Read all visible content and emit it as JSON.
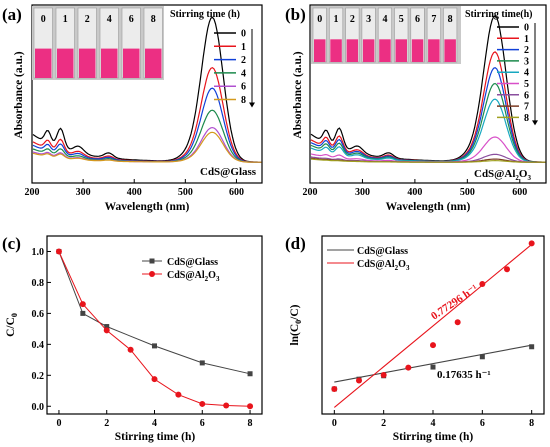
{
  "chart_data": [
    {
      "panel": "(a)",
      "type": "line",
      "xlabel": "Wavelength (nm)",
      "ylabel": "Absorbance (a.u.)",
      "xlim": [
        200,
        650
      ],
      "xticks": [
        200,
        300,
        400,
        500,
        600
      ],
      "legend_title": "Stirring time (h)",
      "legend_position": "top-right",
      "annotation": "CdS@Glass",
      "inset_labels": [
        "0",
        "1",
        "2",
        "4",
        "6",
        "8"
      ],
      "series": [
        {
          "name": "0",
          "color": "#000000",
          "peak": 0.92
        },
        {
          "name": "1",
          "color": "#e8141c",
          "peak": 0.6
        },
        {
          "name": "2",
          "color": "#1040d8",
          "peak": 0.47
        },
        {
          "name": "4",
          "color": "#1c8a4c",
          "peak": 0.33
        },
        {
          "name": "6",
          "color": "#b050d0",
          "peak": 0.22
        },
        {
          "name": "8",
          "color": "#d49a1e",
          "peak": 0.19
        }
      ]
    },
    {
      "panel": "(b)",
      "type": "line",
      "xlabel": "Wavelength (nm)",
      "ylabel": "Absorbance (a.u.)",
      "xlim": [
        200,
        650
      ],
      "xticks": [
        200,
        300,
        400,
        500,
        600
      ],
      "legend_title": "Stirring time(h)",
      "legend_position": "top-right",
      "annotation": "CdS@Al2O3",
      "inset_labels": [
        "0",
        "1",
        "2",
        "3",
        "4",
        "5",
        "6",
        "7",
        "8"
      ],
      "series": [
        {
          "name": "0",
          "color": "#000000",
          "peak": 0.93
        },
        {
          "name": "1",
          "color": "#e8141c",
          "peak": 0.7
        },
        {
          "name": "2",
          "color": "#1040d8",
          "peak": 0.6
        },
        {
          "name": "3",
          "color": "#1c8a4c",
          "peak": 0.5
        },
        {
          "name": "4",
          "color": "#17a8c0",
          "peak": 0.4
        },
        {
          "name": "5",
          "color": "#d84fc8",
          "peak": 0.16
        },
        {
          "name": "6",
          "color": "#8a4e9e",
          "peak": 0.05
        },
        {
          "name": "7",
          "color": "#7a3a22",
          "peak": 0.02
        },
        {
          "name": "8",
          "color": "#a0a020",
          "peak": 0.01
        }
      ]
    },
    {
      "panel": "(c)",
      "type": "line",
      "xlabel": "Stirring time (h)",
      "ylabel": "C/C0",
      "xlim": [
        -0.5,
        8.5
      ],
      "ylim": [
        -0.05,
        1.1
      ],
      "xticks": [
        0,
        2,
        4,
        6,
        8
      ],
      "yticks": [
        0.0,
        0.2,
        0.4,
        0.6,
        0.8,
        1.0
      ],
      "legend_position": "top-right",
      "series": [
        {
          "name": "CdS@Glass",
          "color": "#444444",
          "marker": "square",
          "x": [
            0,
            1,
            2,
            4,
            6,
            8
          ],
          "y": [
            1.0,
            0.6,
            0.515,
            0.39,
            0.28,
            0.21
          ]
        },
        {
          "name": "CdS@Al2O3",
          "color": "#e8141c",
          "marker": "circle",
          "x": [
            0,
            1,
            2,
            3,
            4,
            5,
            6,
            7,
            8
          ],
          "y": [
            1.0,
            0.66,
            0.49,
            0.365,
            0.175,
            0.075,
            0.015,
            0.005,
            0.0
          ]
        }
      ]
    },
    {
      "panel": "(d)",
      "type": "scatter",
      "xlabel": "Stirring time (h)",
      "ylabel": "ln(C0/C)",
      "xlim": [
        -0.5,
        8.5
      ],
      "ylim": [
        -0.15,
        6.6
      ],
      "xticks": [
        0,
        2,
        4,
        6,
        8
      ],
      "legend_position": "top-left",
      "series": [
        {
          "name": "CdS@Glass",
          "color": "#444444",
          "marker": "square",
          "x": [
            0,
            1,
            2,
            4,
            6,
            8
          ],
          "y": [
            0.8,
            1.17,
            1.3,
            1.63,
            2.02,
            2.4
          ],
          "fit": {
            "x": [
              0,
              8
            ],
            "y": [
              1.06,
              2.46
            ],
            "label": "0.17635 h⁻¹"
          }
        },
        {
          "name": "CdS@Al2O3",
          "color": "#e8141c",
          "marker": "circle",
          "x": [
            0,
            1,
            2,
            3,
            4,
            5,
            6,
            7,
            8
          ],
          "y": [
            0.8,
            1.12,
            1.33,
            1.61,
            2.46,
            3.33,
            4.78,
            5.34,
            6.32
          ],
          "fit": {
            "x": [
              0,
              8
            ],
            "y": [
              0.1,
              6.28
            ],
            "label": "0.77296 h⁻¹"
          }
        }
      ]
    }
  ],
  "text": {
    "a": {
      "panel": "(a)",
      "xlabel": "Wavelength (nm)",
      "ylabel": "Absorbance (a.u.)",
      "legend_title": "Stirring time (h)",
      "annotation": "CdS@Glass"
    },
    "b": {
      "panel": "(b)",
      "xlabel": "Wavelength (nm)",
      "ylabel": "Absorbance (a.u.)",
      "legend_title": "Stirring time(h)"
    },
    "c": {
      "panel": "(c)",
      "xlabel": "Stirring time (h)",
      "leg1": "CdS@Glass"
    },
    "d": {
      "panel": "(d)",
      "xlabel": "Stirring time (h)",
      "leg1": "CdS@Glass"
    },
    "subs": {
      "al2o3_head": "CdS@Al",
      "sub2": "2",
      "o": "O",
      "sub3": "3",
      "c": "C",
      "sub0": "0",
      "cc0_head": "C/C",
      "ln_head": "ln(C",
      "ln_mid": "/C)"
    },
    "fit_glass": "0.17635 h⁻¹",
    "fit_al2o3": "0.77296 h⁻¹"
  },
  "colors": {
    "vial_pink": "#ec2f83",
    "inset_bg": "#c8c8c8",
    "fit_red": "#e8141c"
  }
}
